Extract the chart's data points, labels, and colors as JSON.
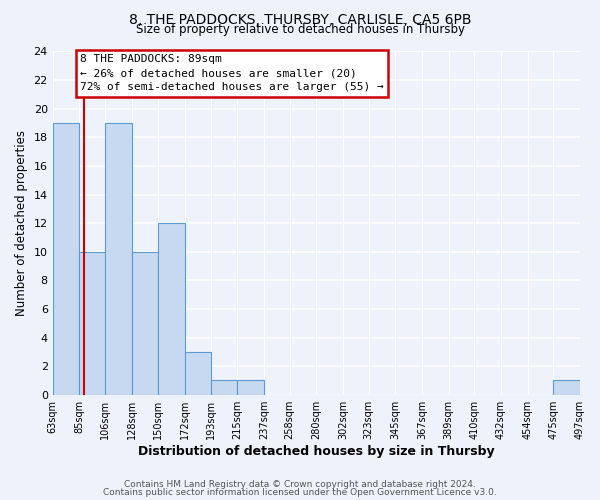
{
  "title": "8, THE PADDOCKS, THURSBY, CARLISLE, CA5 6PB",
  "subtitle": "Size of property relative to detached houses in Thursby",
  "xlabel": "Distribution of detached houses by size in Thursby",
  "ylabel": "Number of detached properties",
  "bar_edges": [
    63,
    85,
    106,
    128,
    150,
    172,
    193,
    215,
    237,
    258,
    280,
    302,
    323,
    345,
    367,
    389,
    410,
    432,
    454,
    475,
    497
  ],
  "bar_heights": [
    19,
    10,
    19,
    10,
    12,
    3,
    1,
    1,
    0,
    0,
    0,
    0,
    0,
    0,
    0,
    0,
    0,
    0,
    0,
    1
  ],
  "bar_color": "#c6d9f0",
  "bar_edge_color": "#5b9bd5",
  "property_line_x": 89,
  "property_line_color": "#cc0000",
  "ylim": [
    0,
    24
  ],
  "yticks": [
    0,
    2,
    4,
    6,
    8,
    10,
    12,
    14,
    16,
    18,
    20,
    22,
    24
  ],
  "annotation_line1": "8 THE PADDOCKS: 89sqm",
  "annotation_line2": "← 26% of detached houses are smaller (20)",
  "annotation_line3": "72% of semi-detached houses are larger (55) →",
  "footer_line1": "Contains HM Land Registry data © Crown copyright and database right 2024.",
  "footer_line2": "Contains public sector information licensed under the Open Government Licence v3.0.",
  "background_color": "#edf2fb",
  "grid_color": "#ffffff",
  "tick_labels": [
    "63sqm",
    "85sqm",
    "106sqm",
    "128sqm",
    "150sqm",
    "172sqm",
    "193sqm",
    "215sqm",
    "237sqm",
    "258sqm",
    "280sqm",
    "302sqm",
    "323sqm",
    "345sqm",
    "367sqm",
    "389sqm",
    "410sqm",
    "432sqm",
    "454sqm",
    "475sqm",
    "497sqm"
  ]
}
